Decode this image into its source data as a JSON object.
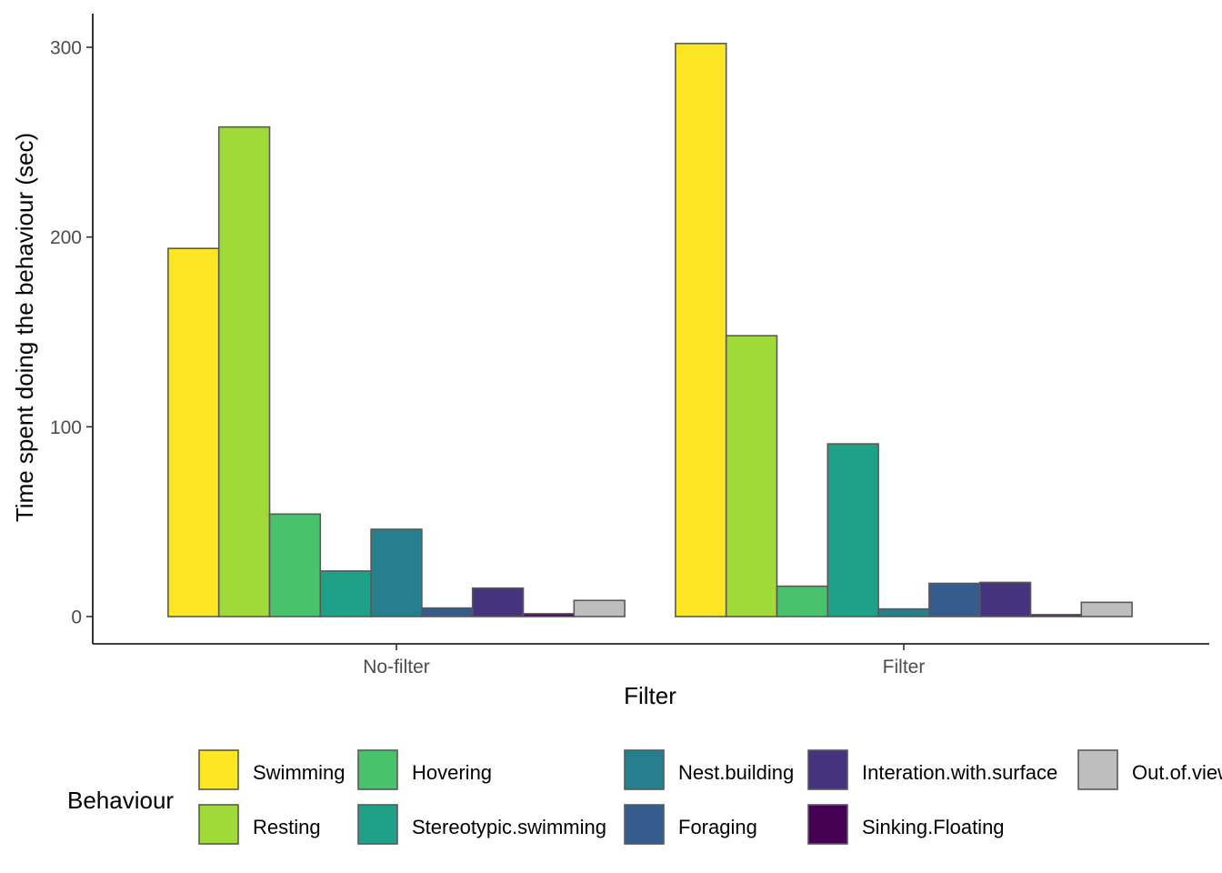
{
  "chart_data": {
    "type": "bar",
    "title": "",
    "xlabel": "Filter",
    "ylabel": "Time spent doing the behaviour (sec)",
    "categories": [
      "No-filter",
      "Filter"
    ],
    "ylim": [
      -15,
      319
    ],
    "yticks": [
      0,
      100,
      200,
      300
    ],
    "grid": false,
    "legend": {
      "title": "Behaviour",
      "placement": "bottom"
    },
    "bar_outline_color": "#595959",
    "series": [
      {
        "name": "Swimming",
        "color": "#FDE725",
        "values": [
          194,
          302
        ]
      },
      {
        "name": "Resting",
        "color": "#A0DA39",
        "values": [
          258,
          148
        ]
      },
      {
        "name": "Hovering",
        "color": "#4AC16D",
        "values": [
          54,
          16
        ]
      },
      {
        "name": "Stereotypic.swimming",
        "color": "#1FA187",
        "values": [
          24,
          91
        ]
      },
      {
        "name": "Nest.building",
        "color": "#277F8E",
        "values": [
          46,
          4
        ]
      },
      {
        "name": "Foraging",
        "color": "#365C8D",
        "values": [
          4.5,
          17.5
        ]
      },
      {
        "name": "Interation.with.surface",
        "color": "#46337E",
        "values": [
          15,
          18
        ]
      },
      {
        "name": "Sinking.Floating",
        "color": "#440154",
        "values": [
          1.5,
          1
        ]
      },
      {
        "name": "Out.of.view",
        "color": "#BEBEBE",
        "values": [
          8.5,
          7.5
        ]
      }
    ]
  }
}
